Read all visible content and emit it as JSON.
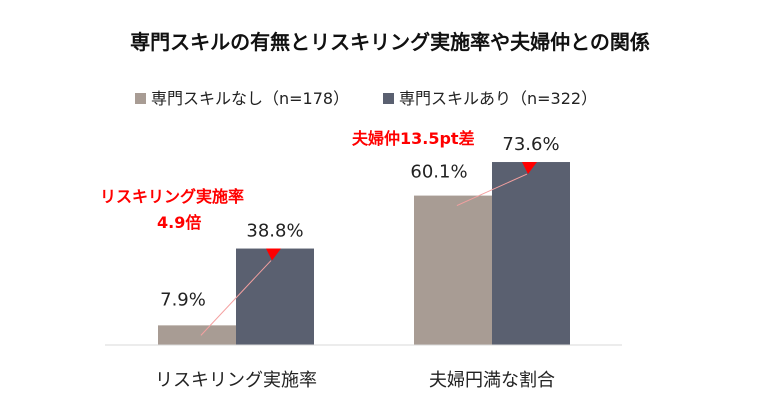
{
  "chart_data": {
    "type": "bar",
    "title": "専門スキルの有無とリスキリング実施率や夫婦仲との関係",
    "categories": [
      "リスキリング実施率",
      "夫婦円満な割合"
    ],
    "series": [
      {
        "name": "専門スキルなし（n=178）",
        "values": [
          7.9,
          60.1
        ],
        "labels": [
          "7.9%",
          "60.1%"
        ],
        "color": "#a89c94"
      },
      {
        "name": "専門スキルあり（n=322）",
        "values": [
          38.8,
          73.6
        ],
        "labels": [
          "38.8%",
          "73.6%"
        ],
        "color": "#5a6070"
      }
    ],
    "ylim": [
      0,
      100
    ],
    "grid": false,
    "legend_position": "top",
    "annotations": [
      {
        "lines": [
          "リスキリング実施率",
          "4.9倍"
        ],
        "color": "#ff0000"
      },
      {
        "lines": [
          "夫婦仲13.5pt差"
        ],
        "color": "#ff0000"
      }
    ]
  }
}
